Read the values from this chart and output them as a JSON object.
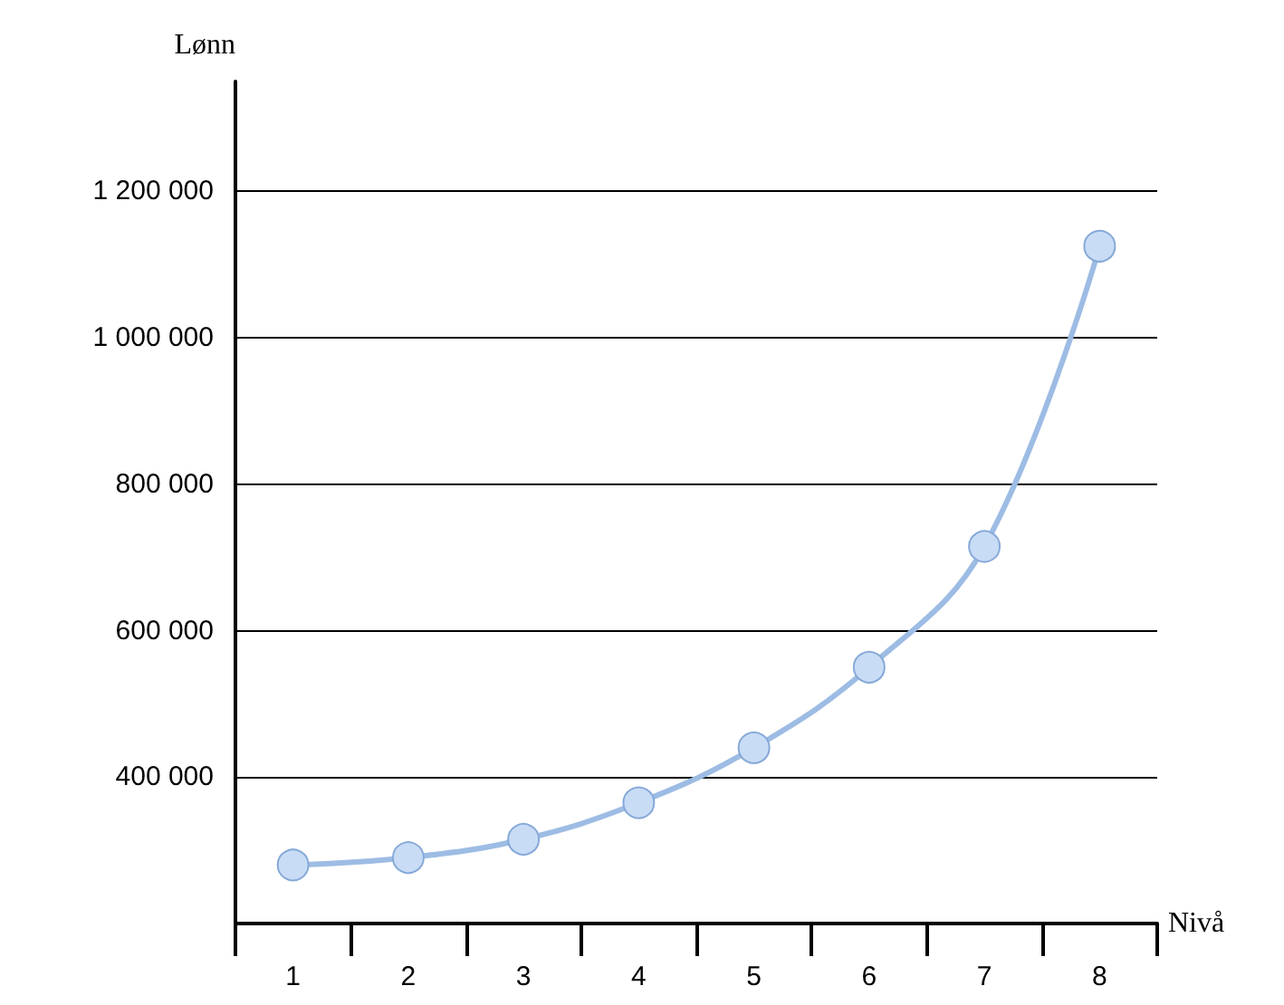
{
  "chart_data": {
    "type": "line",
    "xlabel": "Nivå",
    "ylabel": "Lønn",
    "categories": [
      "1",
      "2",
      "3",
      "4",
      "5",
      "6",
      "7",
      "8"
    ],
    "series": [
      {
        "color": "#9dbce4",
        "values": [
          280000,
          290000,
          315000,
          365000,
          440000,
          550000,
          715000,
          1125000
        ]
      }
    ],
    "ylim": [
      200000,
      1350000
    ],
    "yticks": [
      {
        "value": 400000,
        "label": "400 000"
      },
      {
        "value": 600000,
        "label": "600 000"
      },
      {
        "value": 800000,
        "label": "800 000"
      },
      {
        "value": 1000000,
        "label": "1 000 000"
      },
      {
        "value": 1200000,
        "label": "1 200 000"
      }
    ],
    "grid": "y",
    "marker": "circle",
    "line_style": "solid"
  }
}
